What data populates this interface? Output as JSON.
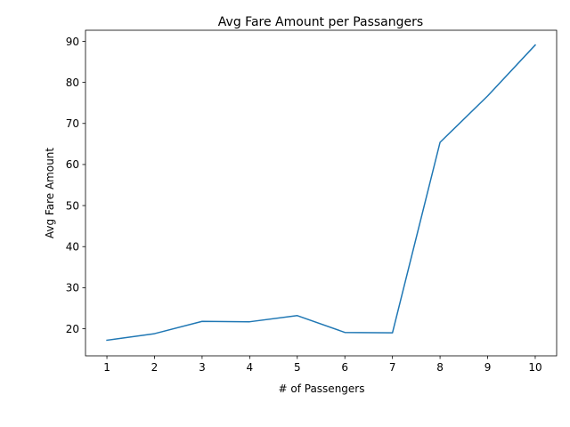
{
  "chart_data": {
    "type": "line",
    "title": "Avg Fare Amount per Passangers",
    "xlabel": "# of Passengers",
    "ylabel": "Avg Fare Amount",
    "x": [
      1,
      2,
      3,
      4,
      5,
      6,
      7,
      8,
      9,
      10
    ],
    "series": [
      {
        "values": [
          17.2,
          18.8,
          21.8,
          21.7,
          23.2,
          19.1,
          19.0,
          65.4,
          76.7,
          89.1
        ]
      }
    ],
    "x_ticks": [
      "1",
      "2",
      "3",
      "4",
      "5",
      "6",
      "7",
      "8",
      "9",
      "10"
    ],
    "y_ticks": [
      "20",
      "30",
      "40",
      "50",
      "60",
      "70",
      "80",
      "90"
    ],
    "xlim": [
      0.55,
      10.45
    ],
    "ylim": [
      13.4,
      92.7
    ],
    "grid": false,
    "line_color": "#1f77b4"
  }
}
